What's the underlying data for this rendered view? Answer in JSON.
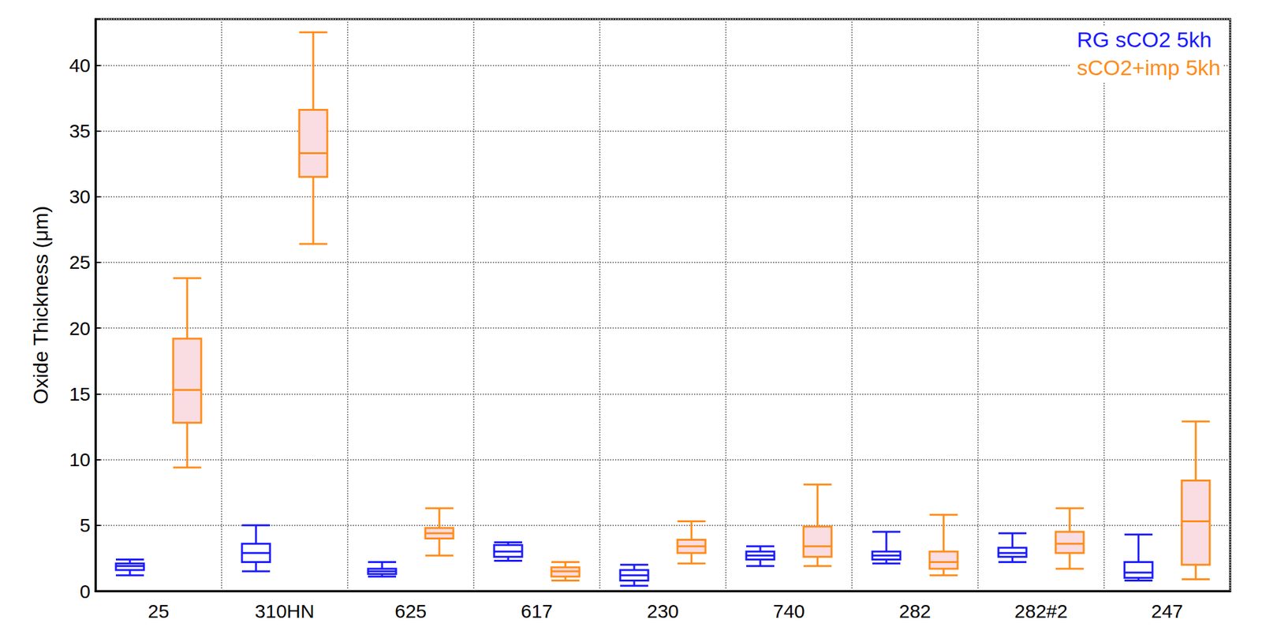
{
  "chart_data": {
    "type": "boxplot",
    "y_label": "Oxide Thickness (μm)",
    "categories": [
      "25",
      "310HN",
      "625",
      "617",
      "230",
      "740",
      "282",
      "282#2",
      "247"
    ],
    "series": [
      {
        "name": "RG sCO2 5kh",
        "color": "#1a1aff",
        "values": [
          [
            1.2,
            1.6,
            1.9,
            2.1,
            2.4
          ],
          [
            1.5,
            2.2,
            2.9,
            3.6,
            5.0
          ],
          [
            1.1,
            1.3,
            1.5,
            1.7,
            2.2
          ],
          [
            2.3,
            2.6,
            3.0,
            3.5,
            3.7
          ],
          [
            0.4,
            0.8,
            1.2,
            1.6,
            2.0
          ],
          [
            1.9,
            2.4,
            2.7,
            3.0,
            3.4
          ],
          [
            2.1,
            2.4,
            2.7,
            3.0,
            4.5
          ],
          [
            2.2,
            2.6,
            2.9,
            3.3,
            4.4
          ],
          [
            0.8,
            1.0,
            1.4,
            2.2,
            4.3
          ]
        ]
      },
      {
        "name": "sCO2+imp 5kh",
        "color": "#ff8c1a",
        "values": [
          [
            9.4,
            12.8,
            15.3,
            19.2,
            23.8
          ],
          [
            26.4,
            31.5,
            33.3,
            36.6,
            42.5
          ],
          [
            2.7,
            4.0,
            4.4,
            4.8,
            6.3
          ],
          [
            0.8,
            1.1,
            1.5,
            1.8,
            2.2
          ],
          [
            2.1,
            2.9,
            3.4,
            3.9,
            5.3
          ],
          [
            1.9,
            2.6,
            3.4,
            4.9,
            8.1
          ],
          [
            1.2,
            1.7,
            2.2,
            3.0,
            5.8
          ],
          [
            1.7,
            2.9,
            3.6,
            4.5,
            6.3
          ],
          [
            0.9,
            2.0,
            5.3,
            8.4,
            12.9
          ]
        ]
      }
    ],
    "ylim": [
      0,
      43.5
    ],
    "yticks": [
      0,
      5,
      10,
      15,
      20,
      25,
      30,
      35,
      40
    ],
    "grid": true,
    "legend": "upper right"
  }
}
